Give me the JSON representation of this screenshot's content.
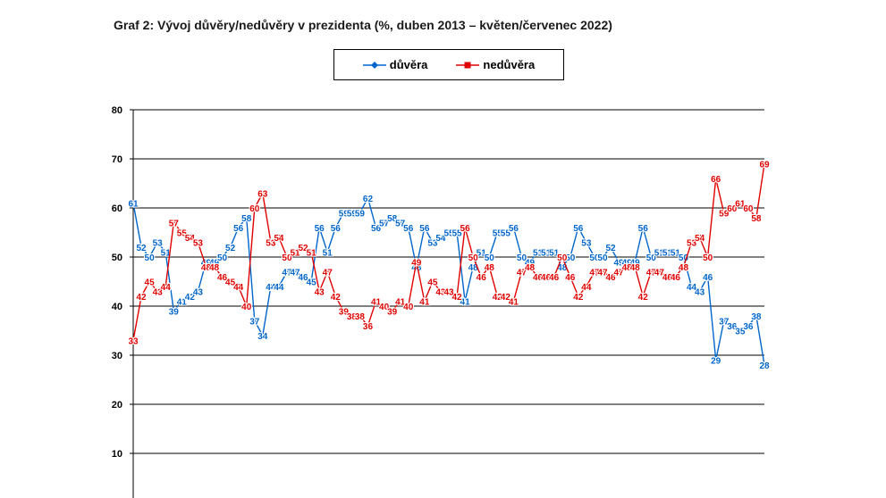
{
  "title": "Graf 2: Vývoj důvěry/nedůvěry v prezidenta (%, duben 2013 – květen/červenec 2022)",
  "chart_data": {
    "type": "line",
    "title": "Graf 2: Vývoj důvěry/nedůvěry v prezidenta (%, duben 2013 – květen/červenec 2022)",
    "xlabel": "",
    "ylabel": "",
    "ylim": [
      0,
      80
    ],
    "yticks": [
      "10",
      "20",
      "30",
      "40",
      "50",
      "60",
      "70",
      "80"
    ],
    "grid": true,
    "legend_placement": "top-center",
    "series": [
      {
        "name": "důvěra",
        "color": "#0066cc",
        "marker": "diamond",
        "values": [
          61,
          52,
          50,
          53,
          51,
          39,
          41,
          42,
          43,
          49,
          49,
          50,
          52,
          56,
          58,
          37,
          34,
          44,
          44,
          47,
          47,
          46,
          45,
          56,
          51,
          56,
          59,
          59,
          59,
          62,
          56,
          57,
          58,
          57,
          56,
          48,
          56,
          53,
          54,
          55,
          55,
          41,
          48,
          51,
          50,
          55,
          55,
          56,
          50,
          49,
          51,
          51,
          51,
          48,
          50,
          56,
          53,
          50,
          50,
          52,
          49,
          49,
          49,
          56,
          50,
          51,
          51,
          51,
          50,
          44,
          43,
          46,
          29,
          37,
          36,
          35,
          36,
          38,
          28
        ]
      },
      {
        "name": "nedůvěra",
        "color": "#e00000",
        "marker": "square",
        "values": [
          33,
          42,
          45,
          43,
          44,
          57,
          55,
          54,
          53,
          48,
          48,
          46,
          45,
          44,
          40,
          60,
          63,
          53,
          54,
          50,
          51,
          52,
          51,
          43,
          47,
          42,
          39,
          38,
          38,
          36,
          41,
          40,
          39,
          41,
          40,
          49,
          41,
          45,
          43,
          43,
          42,
          56,
          50,
          46,
          48,
          42,
          42,
          41,
          47,
          48,
          46,
          46,
          46,
          50,
          46,
          42,
          44,
          47,
          47,
          46,
          47,
          48,
          48,
          42,
          47,
          47,
          46,
          46,
          48,
          53,
          54,
          50,
          66,
          59,
          60,
          61,
          60,
          58,
          69
        ]
      }
    ]
  }
}
